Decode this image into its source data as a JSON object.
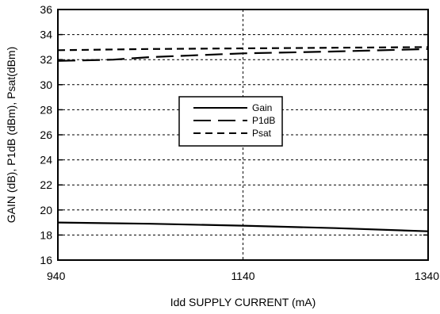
{
  "chart_data": {
    "type": "line",
    "xlabel": "Idd SUPPLY CURRENT (mA)",
    "ylabel": "GAIN (dB), P1dB (dBm), Psat(dBm)",
    "xlim": [
      940,
      1340
    ],
    "ylim": [
      16,
      36
    ],
    "x_ticks": [
      "940",
      "1140",
      "1340"
    ],
    "y_ticks": [
      "16",
      "18",
      "20",
      "22",
      "24",
      "26",
      "28",
      "30",
      "32",
      "34",
      "36"
    ],
    "grid": true,
    "legend_position": "center",
    "series": [
      {
        "name": "Gain",
        "style": "solid",
        "x": [
          940,
          1040,
          1140,
          1240,
          1340
        ],
        "y": [
          19.0,
          18.9,
          18.75,
          18.55,
          18.3
        ]
      },
      {
        "name": "P1dB",
        "style": "long-dash",
        "x": [
          940,
          1000,
          1040,
          1140,
          1240,
          1340
        ],
        "y": [
          31.9,
          32.0,
          32.2,
          32.5,
          32.65,
          32.85
        ]
      },
      {
        "name": "Psat",
        "style": "short-dash",
        "x": [
          940,
          1040,
          1140,
          1240,
          1340
        ],
        "y": [
          32.75,
          32.85,
          32.9,
          32.95,
          33.0
        ]
      }
    ]
  }
}
